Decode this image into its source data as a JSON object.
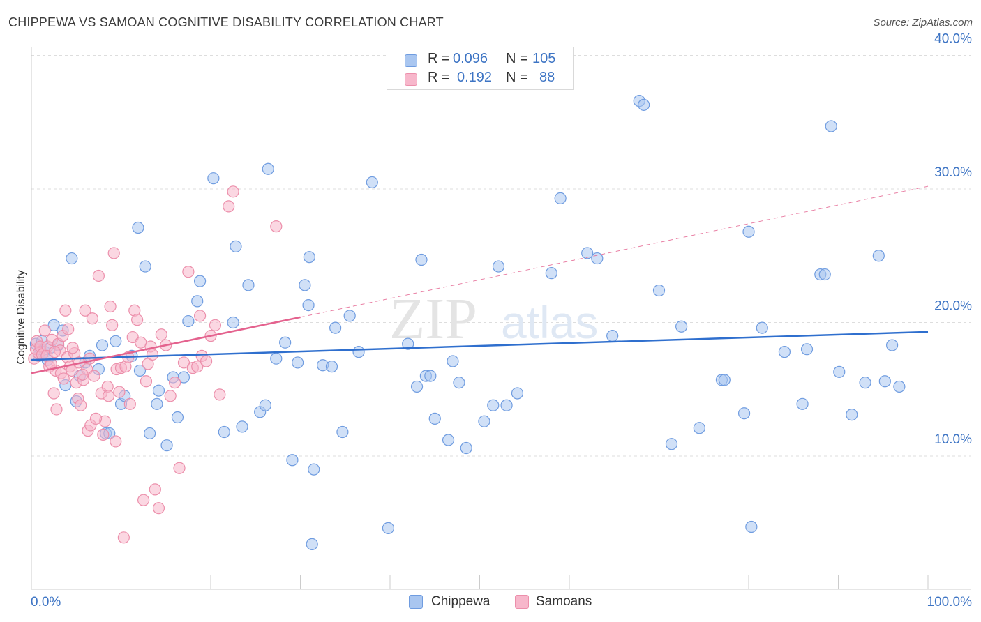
{
  "header": {
    "title": "CHIPPEWA VS SAMOAN COGNITIVE DISABILITY CORRELATION CHART",
    "source": "Source: ZipAtlas.com"
  },
  "watermark": {
    "part1": "ZIP",
    "part2": "atlas"
  },
  "legend_top": {
    "rows": [
      {
        "r_label": "R =",
        "r_value": "0.096",
        "n_label": "N =",
        "n_value": "105"
      },
      {
        "r_label": "R =",
        "r_value": "0.192",
        "n_label": "N =",
        "n_value": "88"
      }
    ]
  },
  "legend_bottom": {
    "items": [
      "Chippewa",
      "Samoans"
    ]
  },
  "colors": {
    "chippewa_fill": "#a9c6f0",
    "chippewa_stroke": "#6f9ce0",
    "chippewa_line": "#2f6fce",
    "samoan_fill": "#f7b7cb",
    "samoan_stroke": "#ec8fab",
    "samoan_line": "#e4628e",
    "axis_label": "#3d74c4",
    "grid": "#dddddd"
  },
  "chart_data": {
    "type": "scatter",
    "title": "CHIPPEWA VS SAMOAN COGNITIVE DISABILITY CORRELATION CHART",
    "xlabel": "",
    "ylabel": "Cognitive Disability",
    "xlim": [
      0,
      100
    ],
    "ylim": [
      0,
      41
    ],
    "x_tick_labels": [
      "0.0%",
      "100.0%"
    ],
    "y_ticks": [
      10,
      20,
      30,
      40
    ],
    "y_tick_labels": [
      "10.0%",
      "20.0%",
      "30.0%",
      "40.0%"
    ],
    "grid": true,
    "legend_position": "top-center",
    "series": [
      {
        "name": "Chippewa",
        "points": [
          [
            0.5,
            18.4
          ],
          [
            0.8,
            17.5
          ],
          [
            1.0,
            18.0
          ],
          [
            1.2,
            18.6
          ],
          [
            1.5,
            17.8
          ],
          [
            1.8,
            17.2
          ],
          [
            2.1,
            18.1
          ],
          [
            2.5,
            19.8
          ],
          [
            3.0,
            18.3
          ],
          [
            3.5,
            19.4
          ],
          [
            3.8,
            15.3
          ],
          [
            4.5,
            24.8
          ],
          [
            5.0,
            14.1
          ],
          [
            5.4,
            16.0
          ],
          [
            6.0,
            17.0
          ],
          [
            6.5,
            17.5
          ],
          [
            7.5,
            16.5
          ],
          [
            7.9,
            18.3
          ],
          [
            8.3,
            11.7
          ],
          [
            8.7,
            11.7
          ],
          [
            9.4,
            18.6
          ],
          [
            10.0,
            13.9
          ],
          [
            10.4,
            14.5
          ],
          [
            11.2,
            17.5
          ],
          [
            11.9,
            27.1
          ],
          [
            12.1,
            16.4
          ],
          [
            12.7,
            24.2
          ],
          [
            13.2,
            11.7
          ],
          [
            14.0,
            13.9
          ],
          [
            14.2,
            14.9
          ],
          [
            15.1,
            10.8
          ],
          [
            15.8,
            15.9
          ],
          [
            16.3,
            12.9
          ],
          [
            17.0,
            15.9
          ],
          [
            17.5,
            20.1
          ],
          [
            18.5,
            21.6
          ],
          [
            18.8,
            23.1
          ],
          [
            20.3,
            30.8
          ],
          [
            21.5,
            11.8
          ],
          [
            22.5,
            20.0
          ],
          [
            22.8,
            25.7
          ],
          [
            23.5,
            12.2
          ],
          [
            24.2,
            22.8
          ],
          [
            25.5,
            13.3
          ],
          [
            26.1,
            13.8
          ],
          [
            26.4,
            31.5
          ],
          [
            27.3,
            17.3
          ],
          [
            28.3,
            18.5
          ],
          [
            29.1,
            9.7
          ],
          [
            29.7,
            17.0
          ],
          [
            30.5,
            22.8
          ],
          [
            30.9,
            21.3
          ],
          [
            31.0,
            24.9
          ],
          [
            31.3,
            3.4
          ],
          [
            31.5,
            9.0
          ],
          [
            32.5,
            16.8
          ],
          [
            33.5,
            16.7
          ],
          [
            33.9,
            19.6
          ],
          [
            34.7,
            11.8
          ],
          [
            35.5,
            20.5
          ],
          [
            36.5,
            17.8
          ],
          [
            38.0,
            30.5
          ],
          [
            39.8,
            4.6
          ],
          [
            42.0,
            18.4
          ],
          [
            43.0,
            15.2
          ],
          [
            43.5,
            24.7
          ],
          [
            44.0,
            16.0
          ],
          [
            44.5,
            16.0
          ],
          [
            45.0,
            12.8
          ],
          [
            46.5,
            11.2
          ],
          [
            47.0,
            17.1
          ],
          [
            47.7,
            15.5
          ],
          [
            48.5,
            10.6
          ],
          [
            50.5,
            12.6
          ],
          [
            51.5,
            13.8
          ],
          [
            52.1,
            24.2
          ],
          [
            53.0,
            13.8
          ],
          [
            54.2,
            14.7
          ],
          [
            58.0,
            23.7
          ],
          [
            59.0,
            29.3
          ],
          [
            62.0,
            25.2
          ],
          [
            63.1,
            24.8
          ],
          [
            64.8,
            19.0
          ],
          [
            67.8,
            36.6
          ],
          [
            68.3,
            36.3
          ],
          [
            70.0,
            22.4
          ],
          [
            71.4,
            10.9
          ],
          [
            72.5,
            19.7
          ],
          [
            74.5,
            12.1
          ],
          [
            77.0,
            15.7
          ],
          [
            77.3,
            15.7
          ],
          [
            79.5,
            13.2
          ],
          [
            80.0,
            26.8
          ],
          [
            80.3,
            4.7
          ],
          [
            81.5,
            19.6
          ],
          [
            84.0,
            17.8
          ],
          [
            86.0,
            13.9
          ],
          [
            86.5,
            18.0
          ],
          [
            88.0,
            23.6
          ],
          [
            88.5,
            23.6
          ],
          [
            89.2,
            34.7
          ],
          [
            90.1,
            16.3
          ],
          [
            91.5,
            13.1
          ],
          [
            93.0,
            15.5
          ],
          [
            94.5,
            25.0
          ],
          [
            95.2,
            15.6
          ],
          [
            96.0,
            18.3
          ],
          [
            96.8,
            15.2
          ]
        ]
      },
      {
        "name": "Samoans",
        "points": [
          [
            0.3,
            17.3
          ],
          [
            0.5,
            18.0
          ],
          [
            0.6,
            18.6
          ],
          [
            0.8,
            17.7
          ],
          [
            1.0,
            18.2
          ],
          [
            1.2,
            17.6
          ],
          [
            1.5,
            19.4
          ],
          [
            1.8,
            18.2
          ],
          [
            2.0,
            16.7
          ],
          [
            2.3,
            18.7
          ],
          [
            2.5,
            14.7
          ],
          [
            2.7,
            16.4
          ],
          [
            2.8,
            13.5
          ],
          [
            3.0,
            18.4
          ],
          [
            3.2,
            17.9
          ],
          [
            3.5,
            19.0
          ],
          [
            3.8,
            20.9
          ],
          [
            4.0,
            17.4
          ],
          [
            4.3,
            16.7
          ],
          [
            4.5,
            16.4
          ],
          [
            4.8,
            17.7
          ],
          [
            5.0,
            15.5
          ],
          [
            5.2,
            14.3
          ],
          [
            5.5,
            13.8
          ],
          [
            5.8,
            15.7
          ],
          [
            6.0,
            20.9
          ],
          [
            6.2,
            16.5
          ],
          [
            6.5,
            17.3
          ],
          [
            6.8,
            20.3
          ],
          [
            7.0,
            16.0
          ],
          [
            7.5,
            23.5
          ],
          [
            7.8,
            14.7
          ],
          [
            8.0,
            11.6
          ],
          [
            8.2,
            12.6
          ],
          [
            8.5,
            15.2
          ],
          [
            8.8,
            21.2
          ],
          [
            9.0,
            19.8
          ],
          [
            9.2,
            25.2
          ],
          [
            9.5,
            16.5
          ],
          [
            9.8,
            14.8
          ],
          [
            10.0,
            16.6
          ],
          [
            10.3,
            3.9
          ],
          [
            10.5,
            16.7
          ],
          [
            10.8,
            17.4
          ],
          [
            11.0,
            13.9
          ],
          [
            11.3,
            18.9
          ],
          [
            11.5,
            20.9
          ],
          [
            11.8,
            20.2
          ],
          [
            12.2,
            18.5
          ],
          [
            12.5,
            6.7
          ],
          [
            12.8,
            15.6
          ],
          [
            13.0,
            16.9
          ],
          [
            13.3,
            18.2
          ],
          [
            13.5,
            17.6
          ],
          [
            13.8,
            7.5
          ],
          [
            14.2,
            6.1
          ],
          [
            14.5,
            19.1
          ],
          [
            15.0,
            18.3
          ],
          [
            15.5,
            14.5
          ],
          [
            16.0,
            15.5
          ],
          [
            16.5,
            9.1
          ],
          [
            17.0,
            17.0
          ],
          [
            17.5,
            23.8
          ],
          [
            18.0,
            16.6
          ],
          [
            18.5,
            16.7
          ],
          [
            18.8,
            20.5
          ],
          [
            19.0,
            17.5
          ],
          [
            19.5,
            17.1
          ],
          [
            20.0,
            19.0
          ],
          [
            20.5,
            19.8
          ],
          [
            21.0,
            14.6
          ],
          [
            22.0,
            28.7
          ],
          [
            22.5,
            29.8
          ],
          [
            27.3,
            27.2
          ],
          [
            1.7,
            17.5
          ],
          [
            2.2,
            16.9
          ],
          [
            2.6,
            17.8
          ],
          [
            3.3,
            16.2
          ],
          [
            3.6,
            15.8
          ],
          [
            4.1,
            19.5
          ],
          [
            4.6,
            18.1
          ],
          [
            5.3,
            17.0
          ],
          [
            5.7,
            16.1
          ],
          [
            6.3,
            11.9
          ],
          [
            6.6,
            12.3
          ],
          [
            7.2,
            12.8
          ],
          [
            8.6,
            14.5
          ],
          [
            9.4,
            11.1
          ]
        ]
      }
    ],
    "trendlines": [
      {
        "series": "Chippewa",
        "x": [
          0,
          100
        ],
        "y": [
          17.2,
          19.3
        ],
        "style": "solid"
      },
      {
        "series": "Samoans",
        "x": [
          0,
          30
        ],
        "y": [
          16.2,
          20.4
        ],
        "style": "solid"
      },
      {
        "series": "Samoans",
        "x": [
          30,
          100
        ],
        "y": [
          20.4,
          30.2
        ],
        "style": "dashed"
      }
    ]
  }
}
